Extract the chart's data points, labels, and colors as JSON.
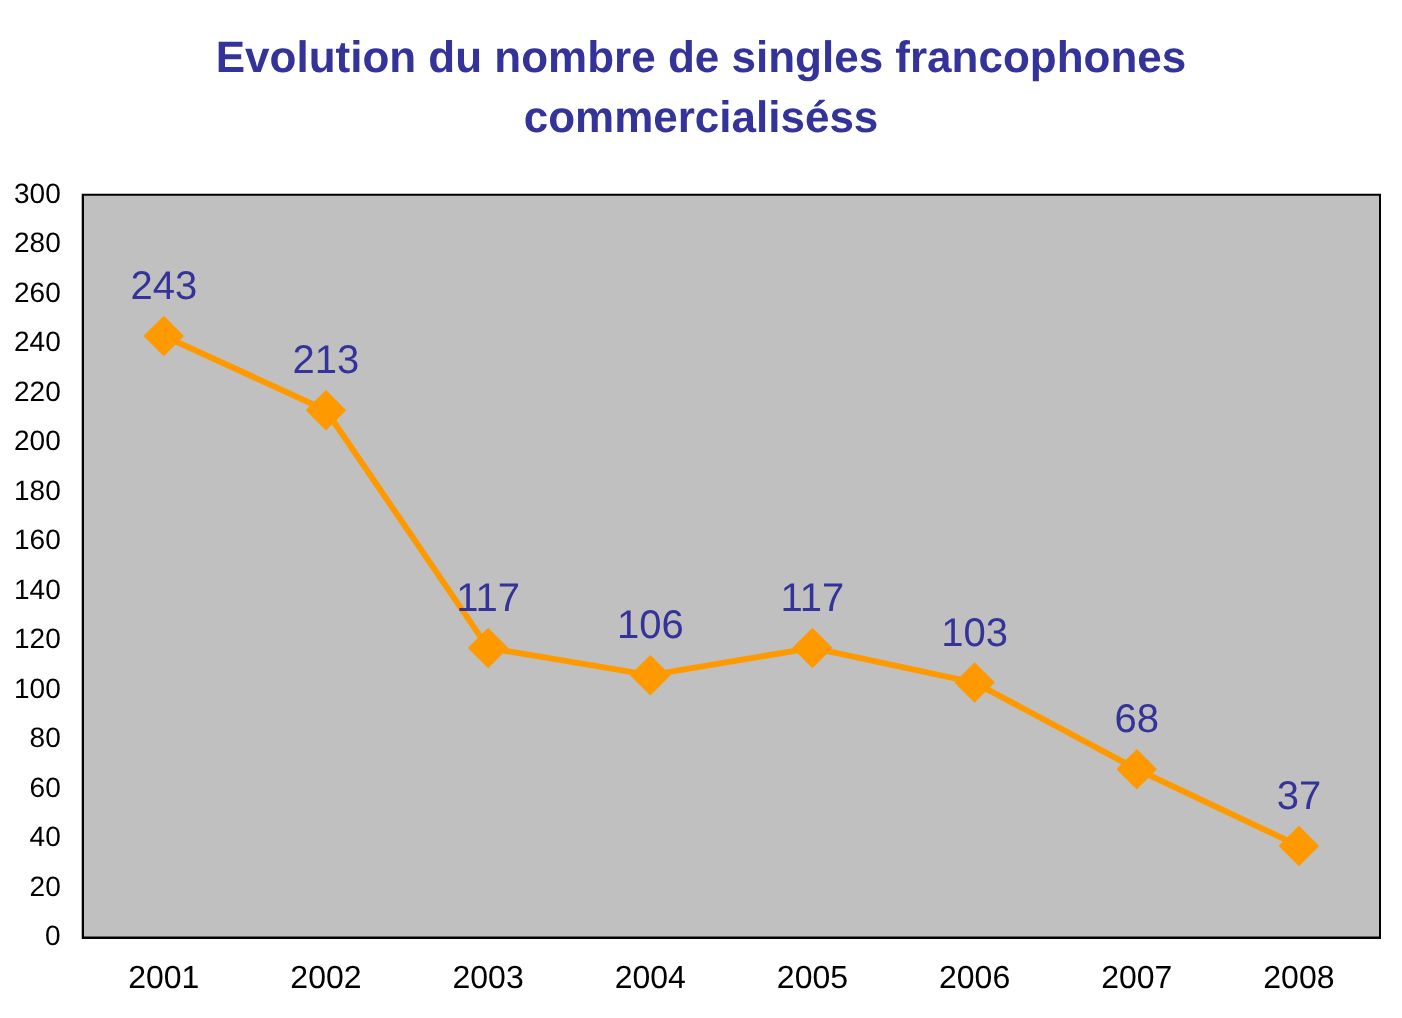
{
  "chart_data": {
    "type": "line",
    "title": "Evolution du nombre de singles francophones commercialiséss",
    "categories": [
      "2001",
      "2002",
      "2003",
      "2004",
      "2005",
      "2006",
      "2007",
      "2008"
    ],
    "series": [
      {
        "color": "#ff9900",
        "values": [
          243,
          213,
          117,
          106,
          117,
          103,
          68,
          37
        ]
      }
    ],
    "ylim": [
      0,
      300
    ],
    "yticks": [
      0,
      20,
      40,
      60,
      80,
      100,
      120,
      140,
      160,
      180,
      200,
      220,
      240,
      260,
      280,
      300
    ],
    "grid": false,
    "legend": false,
    "marker": "diamond",
    "line_style": "solid",
    "data_labels": true
  }
}
